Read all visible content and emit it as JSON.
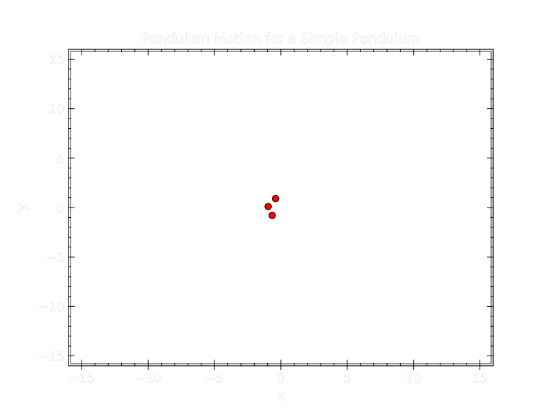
{
  "chart_data": {
    "type": "scatter",
    "title": "Pendulum Motion for a Simple Pendulum",
    "xlabel": "x",
    "ylabel": "y",
    "xlim": [
      -16,
      16
    ],
    "ylim": [
      -16,
      16
    ],
    "xticks": [
      -15,
      -10,
      -5,
      0,
      5,
      10,
      15
    ],
    "yticks": [
      -15,
      -10,
      -5,
      0,
      5,
      10,
      15
    ],
    "xtick_labels": [
      "−15",
      "−10",
      "−5",
      "0",
      "5",
      "10",
      "15"
    ],
    "ytick_labels": [
      "−15",
      "−10",
      "−5",
      "0",
      "5",
      "10",
      "15"
    ],
    "minor_tick_step": 1,
    "grid": false,
    "legend": "none",
    "points": [
      {
        "x": -0.4,
        "y": 0.9
      },
      {
        "x": -0.95,
        "y": 0.1
      },
      {
        "x": -0.65,
        "y": -0.8
      }
    ],
    "marker_color": "#ff0000",
    "marker_edge_color": "#000000",
    "axis_color": "#000000",
    "plot_background": "#ffffff"
  }
}
